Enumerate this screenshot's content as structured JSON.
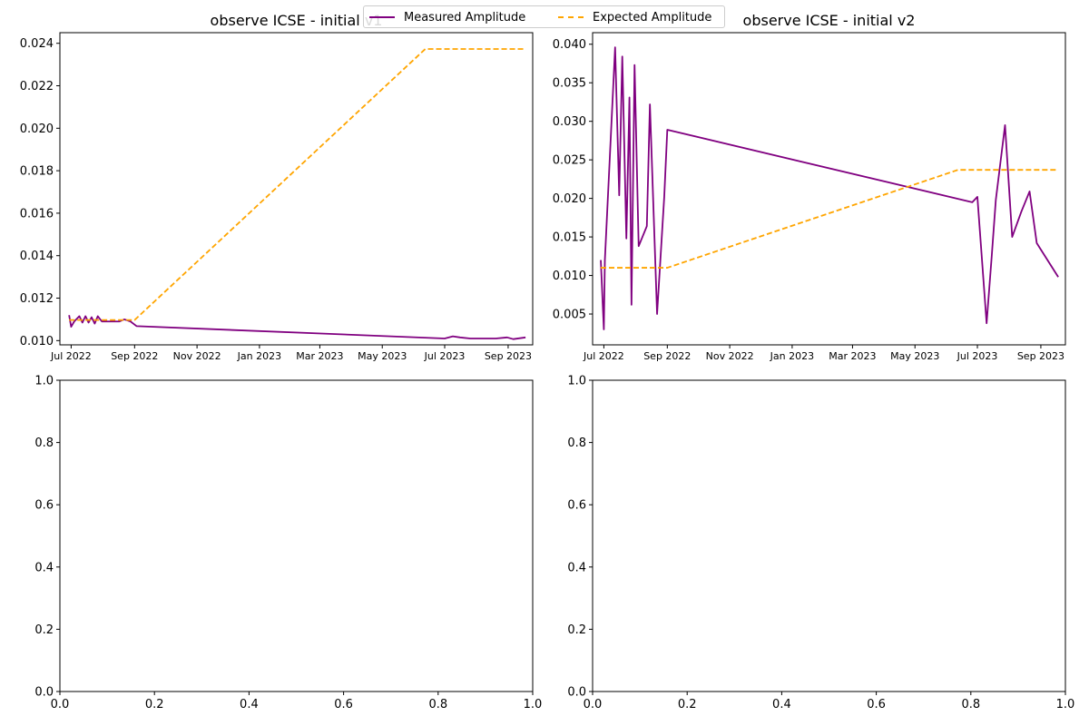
{
  "figure": {
    "legend": {
      "entries": [
        {
          "label": "Measured Amplitude",
          "color": "#800080",
          "style": "solid"
        },
        {
          "label": "Expected Amplitude",
          "color": "#ffa500",
          "style": "dashed"
        }
      ]
    }
  },
  "chart_data": [
    {
      "type": "line",
      "title": "observe ICSE - initial v1",
      "xlabel": "",
      "ylabel": "",
      "x_axis": "date",
      "xlim": [
        "2022-06-20",
        "2023-09-25"
      ],
      "ylim": [
        0.0098,
        0.0245
      ],
      "x_ticks": [
        "2022-07-01",
        "2022-09-01",
        "2022-11-01",
        "2023-01-01",
        "2023-03-01",
        "2023-05-01",
        "2023-07-01",
        "2023-09-01"
      ],
      "x_tick_labels": [
        "Jul 2022",
        "Sep 2022",
        "Nov 2022",
        "Jan 2023",
        "Mar 2023",
        "May 2023",
        "Jul 2023",
        "Sep 2023"
      ],
      "y_ticks": [
        0.01,
        0.012,
        0.014,
        0.016,
        0.018,
        0.02,
        0.022,
        0.024
      ],
      "y_tick_labels": [
        "0.010",
        "0.012",
        "0.014",
        "0.016",
        "0.018",
        "0.020",
        "0.022",
        "0.024"
      ],
      "series": [
        {
          "name": "Measured Amplitude",
          "color": "#800080",
          "dash": "solid",
          "points": [
            [
              "2022-06-29",
              0.0112
            ],
            [
              "2022-07-01",
              0.01065
            ],
            [
              "2022-07-04",
              0.0109
            ],
            [
              "2022-07-09",
              0.01115
            ],
            [
              "2022-07-12",
              0.01085
            ],
            [
              "2022-07-15",
              0.01115
            ],
            [
              "2022-07-18",
              0.01085
            ],
            [
              "2022-07-21",
              0.0111
            ],
            [
              "2022-07-24",
              0.0108
            ],
            [
              "2022-07-27",
              0.01115
            ],
            [
              "2022-07-31",
              0.0109
            ],
            [
              "2022-08-05",
              0.0109
            ],
            [
              "2022-08-10",
              0.0109
            ],
            [
              "2022-08-17",
              0.0109
            ],
            [
              "2022-08-22",
              0.011
            ],
            [
              "2022-08-28",
              0.0109
            ],
            [
              "2022-09-03",
              0.01068
            ],
            [
              "2023-07-01",
              0.0101
            ],
            [
              "2023-07-09",
              0.0102
            ],
            [
              "2023-07-16",
              0.01015
            ],
            [
              "2023-07-26",
              0.0101
            ],
            [
              "2023-08-08",
              0.0101
            ],
            [
              "2023-08-20",
              0.0101
            ],
            [
              "2023-08-31",
              0.01015
            ],
            [
              "2023-09-06",
              0.01007
            ],
            [
              "2023-09-18",
              0.01015
            ]
          ]
        },
        {
          "name": "Expected Amplitude",
          "color": "#ffa500",
          "dash": "dashed",
          "points": [
            [
              "2022-06-29",
              0.01097
            ],
            [
              "2022-09-01",
              0.01097
            ],
            [
              "2023-06-12",
              0.02373
            ],
            [
              "2023-09-18",
              0.02373
            ]
          ]
        }
      ]
    },
    {
      "type": "line",
      "title": "observe ICSE - initial v2",
      "xlabel": "",
      "ylabel": "",
      "x_axis": "date",
      "xlim": [
        "2022-06-20",
        "2023-09-25"
      ],
      "ylim": [
        0.001,
        0.0415
      ],
      "x_ticks": [
        "2022-07-01",
        "2022-09-01",
        "2022-11-01",
        "2023-01-01",
        "2023-03-01",
        "2023-05-01",
        "2023-07-01",
        "2023-09-01"
      ],
      "x_tick_labels": [
        "Jul 2022",
        "Sep 2022",
        "Nov 2022",
        "Jan 2023",
        "Mar 2023",
        "May 2023",
        "Jul 2023",
        "Sep 2023"
      ],
      "y_ticks": [
        0.005,
        0.01,
        0.015,
        0.02,
        0.025,
        0.03,
        0.035,
        0.04
      ],
      "y_tick_labels": [
        "0.005",
        "0.010",
        "0.015",
        "0.020",
        "0.025",
        "0.030",
        "0.035",
        "0.040"
      ],
      "series": [
        {
          "name": "Measured Amplitude",
          "color": "#800080",
          "dash": "solid",
          "points": [
            [
              "2022-06-28",
              0.012
            ],
            [
              "2022-07-01",
              0.003
            ],
            [
              "2022-07-02",
              0.012
            ],
            [
              "2022-07-12",
              0.0396
            ],
            [
              "2022-07-16",
              0.0204
            ],
            [
              "2022-07-19",
              0.0384
            ],
            [
              "2022-07-23",
              0.0148
            ],
            [
              "2022-07-26",
              0.0331
            ],
            [
              "2022-07-28",
              0.0062
            ],
            [
              "2022-07-31",
              0.0373
            ],
            [
              "2022-08-04",
              0.0138
            ],
            [
              "2022-08-12",
              0.0164
            ],
            [
              "2022-08-15",
              0.0322
            ],
            [
              "2022-08-22",
              0.005
            ],
            [
              "2022-08-29",
              0.0202
            ],
            [
              "2022-09-01",
              0.0289
            ],
            [
              "2023-06-26",
              0.0195
            ],
            [
              "2023-07-01",
              0.0202
            ],
            [
              "2023-07-10",
              0.0038
            ],
            [
              "2023-07-15",
              0.0125
            ],
            [
              "2023-07-19",
              0.0198
            ],
            [
              "2023-07-28",
              0.0295
            ],
            [
              "2023-08-04",
              0.015
            ],
            [
              "2023-08-13",
              0.0183
            ],
            [
              "2023-08-21",
              0.0209
            ],
            [
              "2023-08-28",
              0.0142
            ],
            [
              "2023-09-18",
              0.0098
            ]
          ]
        },
        {
          "name": "Expected Amplitude",
          "color": "#ffa500",
          "dash": "dashed",
          "points": [
            [
              "2022-06-28",
              0.011
            ],
            [
              "2022-09-01",
              0.011
            ],
            [
              "2023-06-12",
              0.0237
            ],
            [
              "2023-09-18",
              0.0237
            ]
          ]
        }
      ]
    },
    {
      "type": "line",
      "title": "",
      "xlabel": "",
      "ylabel": "",
      "x_axis": "numeric",
      "xlim": [
        0,
        1
      ],
      "ylim": [
        0,
        1
      ],
      "x_ticks": [
        0,
        0.2,
        0.4,
        0.6,
        0.8,
        1
      ],
      "x_tick_labels": [
        "0.0",
        "0.2",
        "0.4",
        "0.6",
        "0.8",
        "1.0"
      ],
      "y_ticks": [
        0,
        0.2,
        0.4,
        0.6,
        0.8,
        1
      ],
      "y_tick_labels": [
        "0.0",
        "0.2",
        "0.4",
        "0.6",
        "0.8",
        "1.0"
      ],
      "series": []
    },
    {
      "type": "line",
      "title": "",
      "xlabel": "",
      "ylabel": "",
      "x_axis": "numeric",
      "xlim": [
        0,
        1
      ],
      "ylim": [
        0,
        1
      ],
      "x_ticks": [
        0,
        0.2,
        0.4,
        0.6,
        0.8,
        1
      ],
      "x_tick_labels": [
        "0.0",
        "0.2",
        "0.4",
        "0.6",
        "0.8",
        "1.0"
      ],
      "y_ticks": [
        0,
        0.2,
        0.4,
        0.6,
        0.8,
        1
      ],
      "y_tick_labels": [
        "0.0",
        "0.2",
        "0.4",
        "0.6",
        "0.8",
        "1.0"
      ],
      "series": []
    }
  ]
}
